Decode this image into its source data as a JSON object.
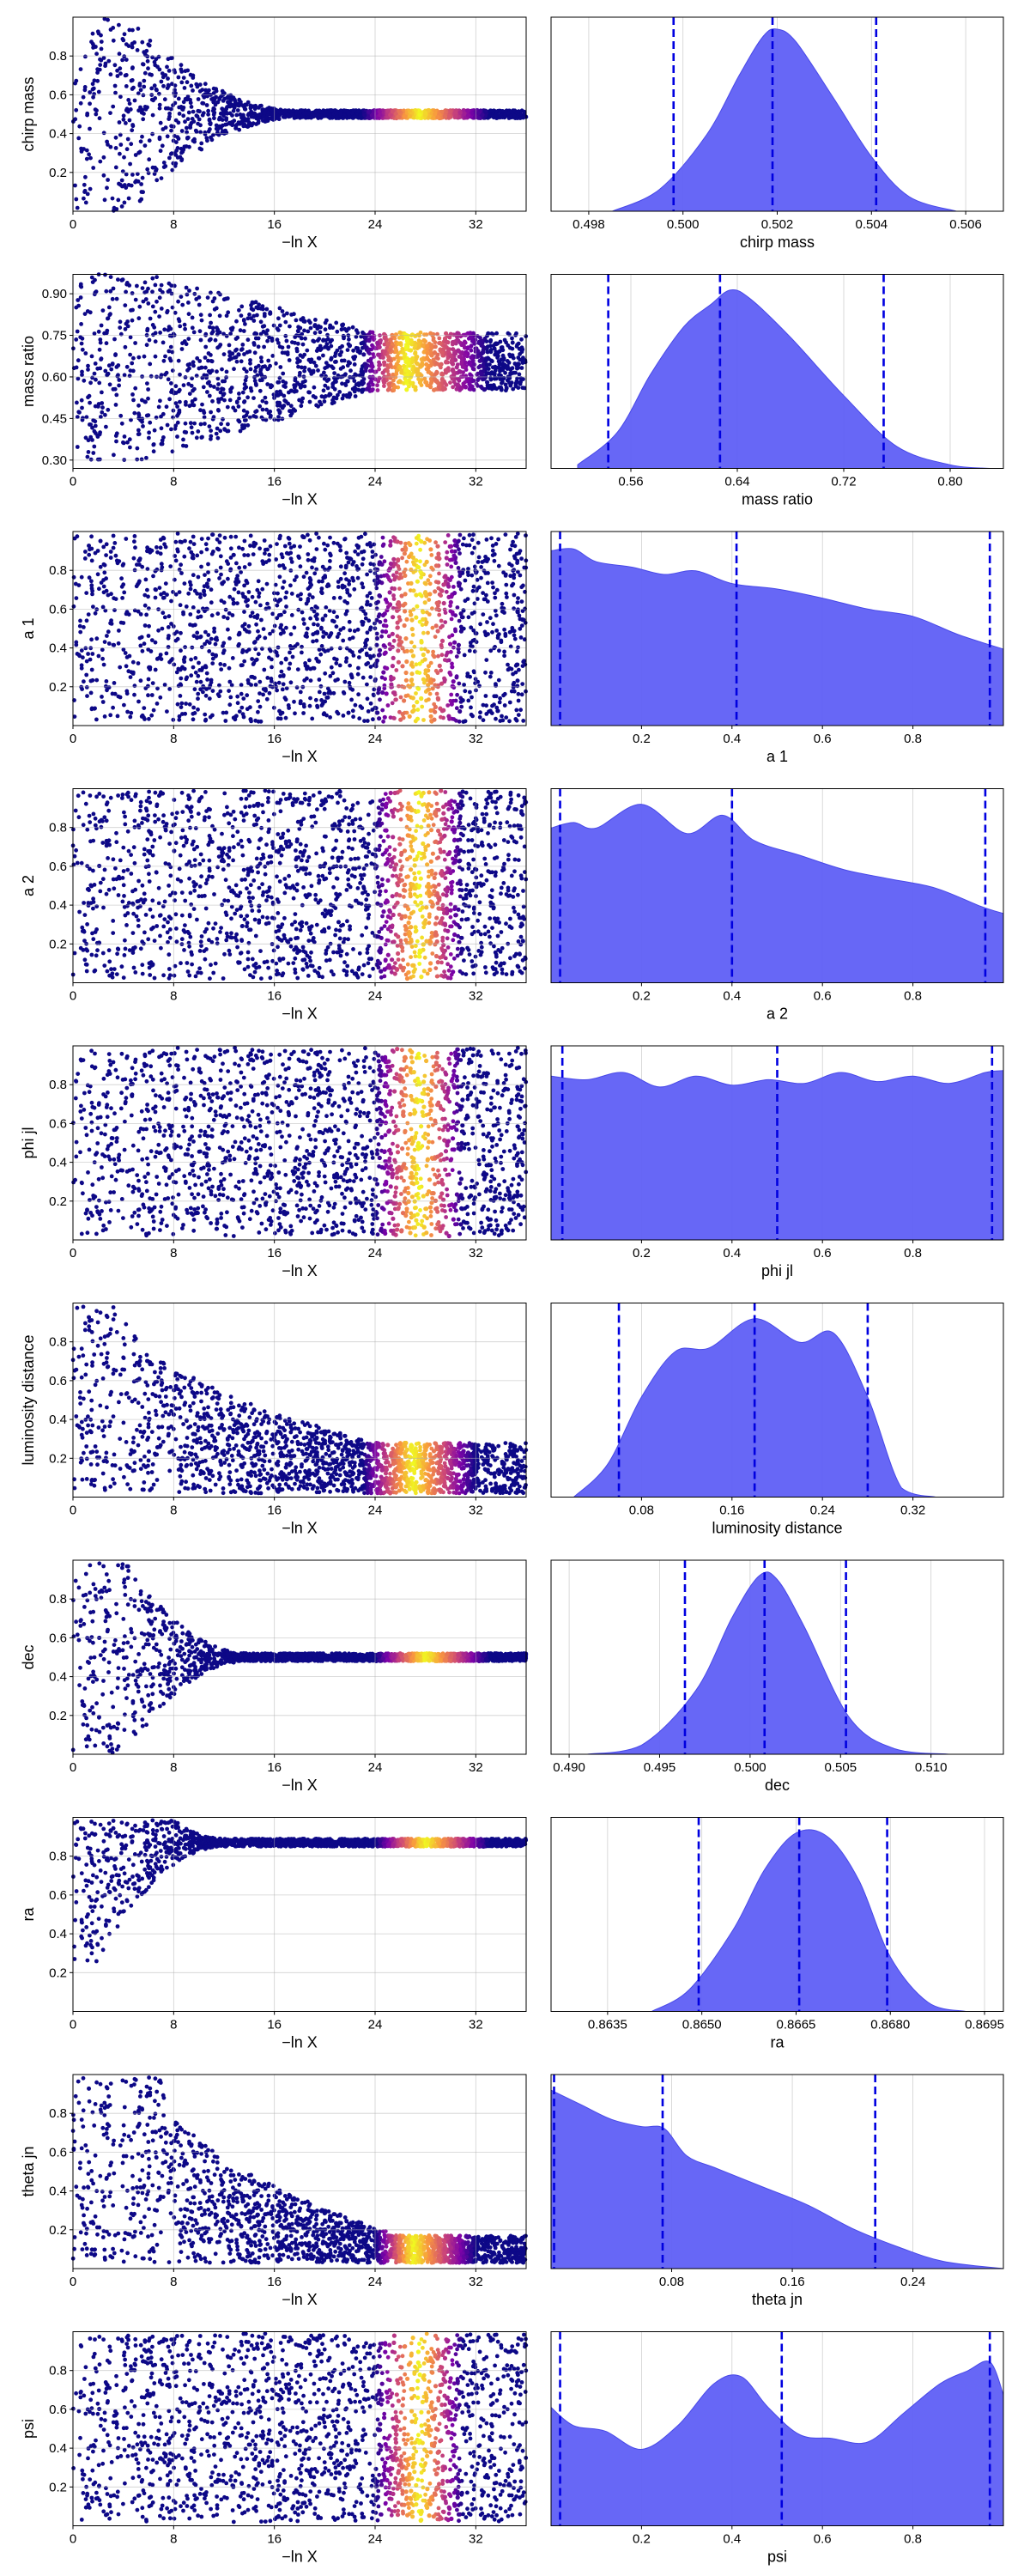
{
  "x_axis_label": "−ln X",
  "chart_data": [
    {
      "type": "scatter",
      "ylabel": "chirp mass",
      "xlabel": "−ln X",
      "xlim": [
        0,
        36
      ],
      "ylim": [
        0,
        1
      ],
      "xticks": [
        "0",
        "8",
        "16",
        "24",
        "32"
      ],
      "yticks": [
        "0.2",
        "0.4",
        "0.6",
        "0.8"
      ],
      "trace": {
        "kind": "funnel",
        "center": 0.5,
        "ramp_start": 3,
        "ramp_end": 18,
        "tail_width": 0.02,
        "span_top": 1.0,
        "span_bottom": 0.0,
        "hot_start": 23,
        "hot_peak": 27.5,
        "hot_end": 33,
        "end": 36
      }
    },
    {
      "type": "area",
      "xlabel": "chirp mass",
      "xlim": [
        0.4972,
        0.5068
      ],
      "xticks": [
        "0.498",
        "0.500",
        "0.502",
        "0.504",
        "0.506"
      ],
      "xtick_values": [
        0.498,
        0.5,
        0.502,
        0.504,
        0.506
      ],
      "quantiles": [
        0.4998,
        0.5019,
        0.5041
      ],
      "density": {
        "x": [
          0.4985,
          0.4995,
          0.5005,
          0.5012,
          0.5017,
          0.502,
          0.5024,
          0.5032,
          0.504,
          0.5048,
          0.5058
        ],
        "y": [
          0.0,
          0.12,
          0.42,
          0.75,
          0.96,
          1.0,
          0.93,
          0.62,
          0.3,
          0.08,
          0.0
        ]
      }
    },
    {
      "type": "scatter",
      "ylabel": "mass ratio",
      "xlabel": "−ln X",
      "xlim": [
        0,
        36
      ],
      "ylim": [
        0.27,
        0.97
      ],
      "xticks": [
        "0",
        "8",
        "16",
        "24",
        "32"
      ],
      "yticks": [
        "0.30",
        "0.45",
        "0.60",
        "0.75",
        "0.90"
      ],
      "trace": {
        "kind": "band",
        "center": 0.64,
        "upper_start": 0.97,
        "lower_start": 0.3,
        "upper_end": 0.76,
        "lower_end": 0.55,
        "narrow_start": 6,
        "narrow_end": 24,
        "hot_start": 23,
        "hot_peak": 26.5,
        "hot_end": 33,
        "end": 36
      }
    },
    {
      "type": "area",
      "xlabel": "mass ratio",
      "xlim": [
        0.5,
        0.84
      ],
      "xticks": [
        "0.56",
        "0.64",
        "0.72",
        "0.80"
      ],
      "xtick_values": [
        0.56,
        0.64,
        0.72,
        0.8
      ],
      "quantiles": [
        0.543,
        0.627,
        0.75
      ],
      "density": {
        "x": [
          0.52,
          0.55,
          0.575,
          0.6,
          0.62,
          0.635,
          0.65,
          0.68,
          0.72,
          0.76,
          0.8,
          0.83
        ],
        "y": [
          0.02,
          0.2,
          0.52,
          0.78,
          0.9,
          0.98,
          0.93,
          0.72,
          0.4,
          0.12,
          0.02,
          0.0
        ]
      }
    },
    {
      "type": "scatter",
      "ylabel": "a 1",
      "xlabel": "−ln X",
      "xlim": [
        0,
        36
      ],
      "ylim": [
        0,
        1
      ],
      "xticks": [
        "0",
        "8",
        "16",
        "24",
        "32"
      ],
      "yticks": [
        "0.2",
        "0.4",
        "0.6",
        "0.8"
      ],
      "trace": {
        "kind": "uniform",
        "lower": 0.02,
        "upper": 0.99,
        "hot_start": 24,
        "hot_peak": 27.5,
        "hot_end": 31,
        "end": 36
      }
    },
    {
      "type": "area",
      "xlabel": "a 1",
      "xlim": [
        0,
        1
      ],
      "xticks": [
        "0.2",
        "0.4",
        "0.6",
        "0.8"
      ],
      "xtick_values": [
        0.2,
        0.4,
        0.6,
        0.8
      ],
      "quantiles": [
        0.02,
        0.41,
        0.97
      ],
      "density": {
        "x": [
          0.0,
          0.05,
          0.1,
          0.18,
          0.25,
          0.32,
          0.4,
          0.5,
          0.6,
          0.7,
          0.8,
          0.9,
          1.0
        ],
        "y": [
          0.96,
          0.97,
          0.9,
          0.87,
          0.83,
          0.85,
          0.78,
          0.75,
          0.7,
          0.64,
          0.6,
          0.5,
          0.42
        ]
      }
    },
    {
      "type": "scatter",
      "ylabel": "a 2",
      "xlabel": "−ln X",
      "xlim": [
        0,
        36
      ],
      "ylim": [
        0,
        1
      ],
      "xticks": [
        "0",
        "8",
        "16",
        "24",
        "32"
      ],
      "yticks": [
        "0.2",
        "0.4",
        "0.6",
        "0.8"
      ],
      "trace": {
        "kind": "uniform",
        "lower": 0.02,
        "upper": 0.99,
        "hot_start": 24,
        "hot_peak": 27.5,
        "hot_end": 31,
        "end": 36
      }
    },
    {
      "type": "area",
      "xlabel": "a 2",
      "xlim": [
        0,
        1
      ],
      "xticks": [
        "0.2",
        "0.4",
        "0.6",
        "0.8"
      ],
      "xtick_values": [
        0.2,
        0.4,
        0.6,
        0.8
      ],
      "quantiles": [
        0.02,
        0.4,
        0.96
      ],
      "density": {
        "x": [
          0.0,
          0.05,
          0.1,
          0.2,
          0.3,
          0.38,
          0.45,
          0.55,
          0.65,
          0.75,
          0.85,
          0.95,
          1.0
        ],
        "y": [
          0.85,
          0.88,
          0.85,
          0.98,
          0.82,
          0.92,
          0.78,
          0.7,
          0.62,
          0.57,
          0.52,
          0.42,
          0.38
        ]
      }
    },
    {
      "type": "scatter",
      "ylabel": "phi jl",
      "xlabel": "−ln X",
      "xlim": [
        0,
        36
      ],
      "ylim": [
        0,
        1
      ],
      "xticks": [
        "0",
        "8",
        "16",
        "24",
        "32"
      ],
      "yticks": [
        "0.2",
        "0.4",
        "0.6",
        "0.8"
      ],
      "trace": {
        "kind": "uniform",
        "lower": 0.02,
        "upper": 0.99,
        "hot_start": 24,
        "hot_peak": 27.5,
        "hot_end": 31,
        "end": 36
      }
    },
    {
      "type": "area",
      "xlabel": "phi jl",
      "xlim": [
        0,
        1
      ],
      "xticks": [
        "0.2",
        "0.4",
        "0.6",
        "0.8"
      ],
      "xtick_values": [
        0.2,
        0.4,
        0.6,
        0.8
      ],
      "quantiles": [
        0.025,
        0.5,
        0.975
      ],
      "density": {
        "x": [
          0.0,
          0.08,
          0.16,
          0.24,
          0.32,
          0.4,
          0.48,
          0.56,
          0.64,
          0.72,
          0.8,
          0.88,
          0.96,
          1.0
        ],
        "y": [
          0.9,
          0.88,
          0.92,
          0.84,
          0.9,
          0.85,
          0.88,
          0.86,
          0.92,
          0.87,
          0.9,
          0.86,
          0.92,
          0.93
        ]
      }
    },
    {
      "type": "scatter",
      "ylabel": "luminosity distance",
      "xlabel": "−ln X",
      "xlim": [
        0,
        36
      ],
      "ylim": [
        0,
        1
      ],
      "xticks": [
        "0",
        "8",
        "16",
        "24",
        "32"
      ],
      "yticks": [
        "0.2",
        "0.4",
        "0.6",
        "0.8"
      ],
      "trace": {
        "kind": "decay",
        "lower": 0.02,
        "upper_start": 0.99,
        "upper_end": 0.28,
        "decay_start": 4,
        "decay_end": 24,
        "hot_start": 23,
        "hot_peak": 27,
        "hot_end": 32,
        "end": 36
      }
    },
    {
      "type": "area",
      "xlabel": "luminosity distance",
      "xlim": [
        0,
        0.4
      ],
      "xticks": [
        "0.08",
        "0.16",
        "0.24",
        "0.32"
      ],
      "xtick_values": [
        0.08,
        0.16,
        0.24,
        0.32
      ],
      "quantiles": [
        0.06,
        0.18,
        0.28
      ],
      "density": {
        "x": [
          0.02,
          0.05,
          0.08,
          0.11,
          0.14,
          0.18,
          0.22,
          0.25,
          0.28,
          0.31,
          0.34
        ],
        "y": [
          0.0,
          0.18,
          0.55,
          0.8,
          0.82,
          0.98,
          0.85,
          0.9,
          0.55,
          0.05,
          0.0
        ]
      }
    },
    {
      "type": "scatter",
      "ylabel": "dec",
      "xlabel": "−ln X",
      "xlim": [
        0,
        36
      ],
      "ylim": [
        0,
        1
      ],
      "xticks": [
        "0",
        "8",
        "16",
        "24",
        "32"
      ],
      "yticks": [
        "0.2",
        "0.4",
        "0.6",
        "0.8"
      ],
      "trace": {
        "kind": "funnel",
        "center": 0.5,
        "ramp_start": 3,
        "ramp_end": 14,
        "tail_width": 0.02,
        "span_top": 1.0,
        "span_bottom": 0.0,
        "hot_start": 24,
        "hot_peak": 28,
        "hot_end": 33,
        "end": 36
      }
    },
    {
      "type": "area",
      "xlabel": "dec",
      "xlim": [
        0.489,
        0.514
      ],
      "xticks": [
        "0.490",
        "0.495",
        "0.500",
        "0.505",
        "0.510"
      ],
      "xtick_values": [
        0.49,
        0.495,
        0.5,
        0.505,
        0.51
      ],
      "quantiles": [
        0.4964,
        0.5008,
        0.5053
      ],
      "density": {
        "x": [
          0.491,
          0.494,
          0.497,
          0.499,
          0.5005,
          0.5015,
          0.503,
          0.5055,
          0.508,
          0.511
        ],
        "y": [
          0.0,
          0.05,
          0.35,
          0.75,
          0.98,
          0.96,
          0.7,
          0.2,
          0.03,
          0.0
        ]
      }
    },
    {
      "type": "scatter",
      "ylabel": "ra",
      "xlabel": "−ln X",
      "xlim": [
        0,
        36
      ],
      "ylim": [
        0,
        1
      ],
      "xticks": [
        "0",
        "8",
        "16",
        "24",
        "32"
      ],
      "yticks": [
        "0.2",
        "0.4",
        "0.6",
        "0.8"
      ],
      "trace": {
        "kind": "funnel",
        "center": 0.87,
        "ramp_start": 2,
        "ramp_end": 12,
        "tail_width": 0.02,
        "span_top": 0.99,
        "span_bottom": 0.03,
        "hot_start": 24,
        "hot_peak": 28,
        "hot_end": 33,
        "end": 36
      }
    },
    {
      "type": "area",
      "xlabel": "ra",
      "xlim": [
        0.8626,
        0.8698
      ],
      "xticks": [
        "0.8635",
        "0.8650",
        "0.8665",
        "0.8680",
        "0.8695"
      ],
      "xtick_values": [
        0.8635,
        0.865,
        0.8665,
        0.868,
        0.8695
      ],
      "quantiles": [
        0.86495,
        0.86655,
        0.86795
      ],
      "density": {
        "x": [
          0.8642,
          0.8648,
          0.8655,
          0.866,
          0.8665,
          0.867,
          0.8675,
          0.868,
          0.8686,
          0.8692
        ],
        "y": [
          0.0,
          0.12,
          0.45,
          0.78,
          0.98,
          0.96,
          0.72,
          0.3,
          0.05,
          0.0
        ]
      }
    },
    {
      "type": "scatter",
      "ylabel": "theta jn",
      "xlabel": "−ln X",
      "xlim": [
        0,
        36
      ],
      "ylim": [
        0,
        1
      ],
      "xticks": [
        "0",
        "8",
        "16",
        "24",
        "32"
      ],
      "yticks": [
        "0.2",
        "0.4",
        "0.6",
        "0.8"
      ],
      "trace": {
        "kind": "decay",
        "lower": 0.03,
        "upper_start": 0.99,
        "upper_end": 0.17,
        "decay_start": 7,
        "decay_end": 26,
        "hot_start": 24,
        "hot_peak": 27,
        "hot_end": 32,
        "end": 36
      }
    },
    {
      "type": "area",
      "xlabel": "theta jn",
      "xlim": [
        0,
        0.3
      ],
      "xticks": [
        "0.08",
        "0.16",
        "0.24"
      ],
      "xtick_values": [
        0.08,
        0.16,
        0.24
      ],
      "quantiles": [
        0.002,
        0.074,
        0.215
      ],
      "density": {
        "x": [
          0.0,
          0.02,
          0.04,
          0.06,
          0.075,
          0.09,
          0.11,
          0.14,
          0.17,
          0.2,
          0.23,
          0.26,
          0.3
        ],
        "y": [
          0.98,
          0.9,
          0.82,
          0.78,
          0.77,
          0.62,
          0.55,
          0.45,
          0.35,
          0.22,
          0.12,
          0.04,
          0.0
        ]
      }
    },
    {
      "type": "scatter",
      "ylabel": "psi",
      "xlabel": "−ln X",
      "xlim": [
        0,
        36
      ],
      "ylim": [
        0,
        1
      ],
      "xticks": [
        "0",
        "8",
        "16",
        "24",
        "32"
      ],
      "yticks": [
        "0.2",
        "0.4",
        "0.6",
        "0.8"
      ],
      "trace": {
        "kind": "uniform",
        "lower": 0.02,
        "upper": 0.99,
        "hot_start": 24,
        "hot_peak": 27.5,
        "hot_end": 31,
        "end": 36
      }
    },
    {
      "type": "area",
      "xlabel": "psi",
      "xlim": [
        0,
        1
      ],
      "xticks": [
        "0.2",
        "0.4",
        "0.6",
        "0.8"
      ],
      "xtick_values": [
        0.2,
        0.4,
        0.6,
        0.8
      ],
      "quantiles": [
        0.02,
        0.51,
        0.97
      ],
      "density": {
        "x": [
          0.0,
          0.05,
          0.12,
          0.2,
          0.28,
          0.36,
          0.42,
          0.48,
          0.55,
          0.62,
          0.7,
          0.78,
          0.86,
          0.92,
          0.97,
          1.0
        ],
        "y": [
          0.65,
          0.55,
          0.52,
          0.42,
          0.55,
          0.78,
          0.82,
          0.65,
          0.5,
          0.48,
          0.46,
          0.62,
          0.78,
          0.85,
          0.9,
          0.72
        ]
      }
    }
  ]
}
